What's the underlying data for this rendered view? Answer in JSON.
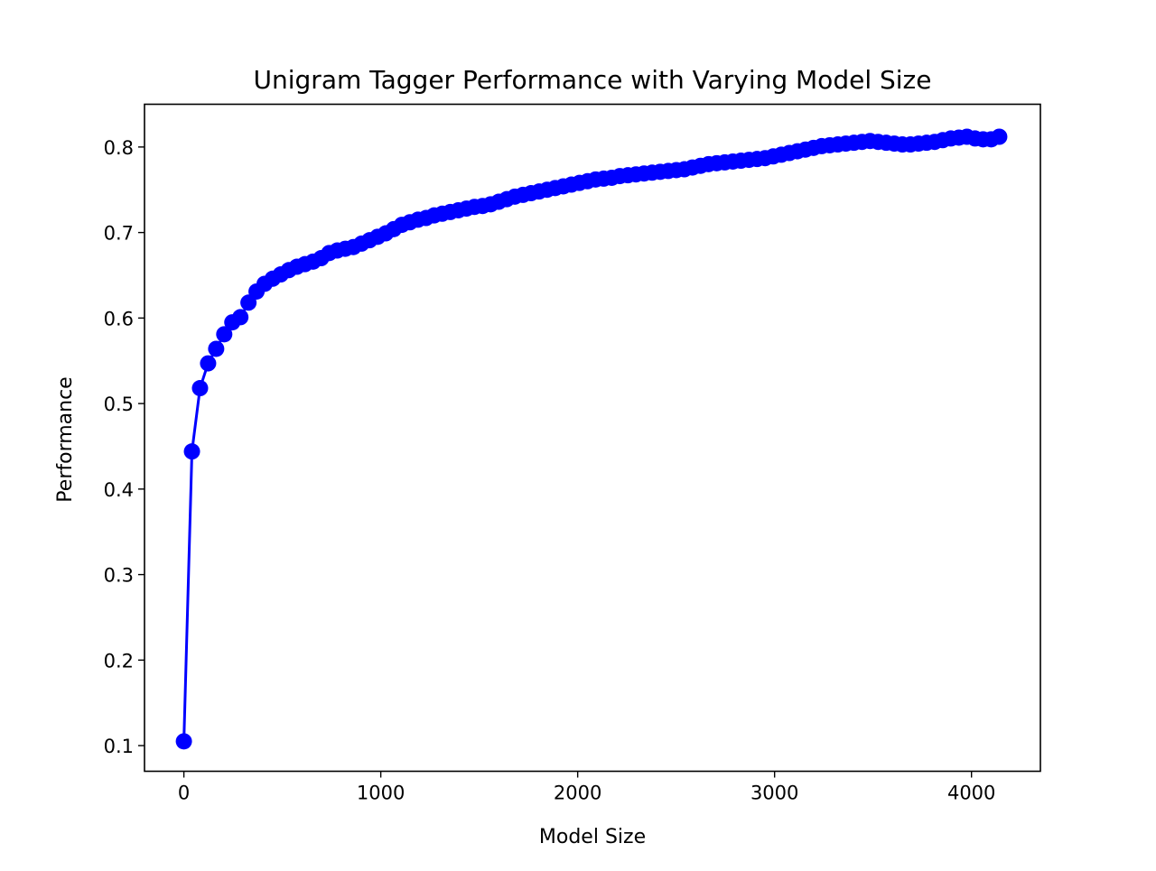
{
  "chart_data": {
    "type": "line",
    "title": "Unigram Tagger Performance with Varying Model Size",
    "xlabel": "Model Size",
    "ylabel": "Performance",
    "xlim": [
      -200,
      4350
    ],
    "ylim": [
      0.07,
      0.85
    ],
    "xticks": [
      0,
      1000,
      2000,
      3000,
      4000
    ],
    "xtick_labels": [
      "0",
      "1000",
      "2000",
      "3000",
      "4000"
    ],
    "yticks": [
      0.1,
      0.2,
      0.3,
      0.4,
      0.5,
      0.6,
      0.7,
      0.8
    ],
    "ytick_labels": [
      "0.1",
      "0.2",
      "0.3",
      "0.4",
      "0.5",
      "0.6",
      "0.7",
      "0.8"
    ],
    "grid": false,
    "legend": "none",
    "series": [
      {
        "color": "#0000ff",
        "marker": "circle",
        "x": [
          0,
          41,
          82,
          123,
          164,
          205,
          246,
          287,
          328,
          369,
          410,
          451,
          492,
          533,
          574,
          615,
          656,
          697,
          738,
          779,
          820,
          861,
          902,
          943,
          984,
          1025,
          1066,
          1107,
          1148,
          1189,
          1230,
          1271,
          1312,
          1353,
          1394,
          1435,
          1476,
          1517,
          1558,
          1599,
          1640,
          1681,
          1722,
          1763,
          1804,
          1845,
          1886,
          1927,
          1968,
          2009,
          2050,
          2091,
          2132,
          2173,
          2214,
          2255,
          2296,
          2337,
          2378,
          2419,
          2460,
          2501,
          2542,
          2583,
          2624,
          2665,
          2706,
          2747,
          2788,
          2829,
          2870,
          2911,
          2952,
          2993,
          3034,
          3075,
          3116,
          3157,
          3198,
          3239,
          3280,
          3321,
          3362,
          3403,
          3444,
          3485,
          3526,
          3567,
          3608,
          3649,
          3690,
          3731,
          3772,
          3813,
          3854,
          3895,
          3936,
          3977,
          4018,
          4059,
          4100,
          4141
        ],
        "y": [
          0.105,
          0.444,
          0.518,
          0.547,
          0.564,
          0.581,
          0.595,
          0.601,
          0.618,
          0.631,
          0.64,
          0.646,
          0.651,
          0.656,
          0.66,
          0.663,
          0.666,
          0.67,
          0.676,
          0.679,
          0.681,
          0.683,
          0.687,
          0.691,
          0.695,
          0.699,
          0.704,
          0.709,
          0.712,
          0.715,
          0.717,
          0.72,
          0.722,
          0.724,
          0.726,
          0.728,
          0.73,
          0.731,
          0.733,
          0.736,
          0.739,
          0.742,
          0.744,
          0.746,
          0.748,
          0.75,
          0.752,
          0.754,
          0.756,
          0.758,
          0.76,
          0.762,
          0.763,
          0.764,
          0.766,
          0.767,
          0.768,
          0.769,
          0.77,
          0.771,
          0.772,
          0.773,
          0.774,
          0.776,
          0.778,
          0.78,
          0.781,
          0.782,
          0.783,
          0.784,
          0.785,
          0.786,
          0.787,
          0.789,
          0.791,
          0.793,
          0.795,
          0.797,
          0.799,
          0.801,
          0.802,
          0.803,
          0.804,
          0.805,
          0.806,
          0.807,
          0.806,
          0.805,
          0.804,
          0.803,
          0.803,
          0.804,
          0.805,
          0.806,
          0.808,
          0.81,
          0.811,
          0.812,
          0.81,
          0.809,
          0.809,
          0.812
        ]
      }
    ]
  }
}
